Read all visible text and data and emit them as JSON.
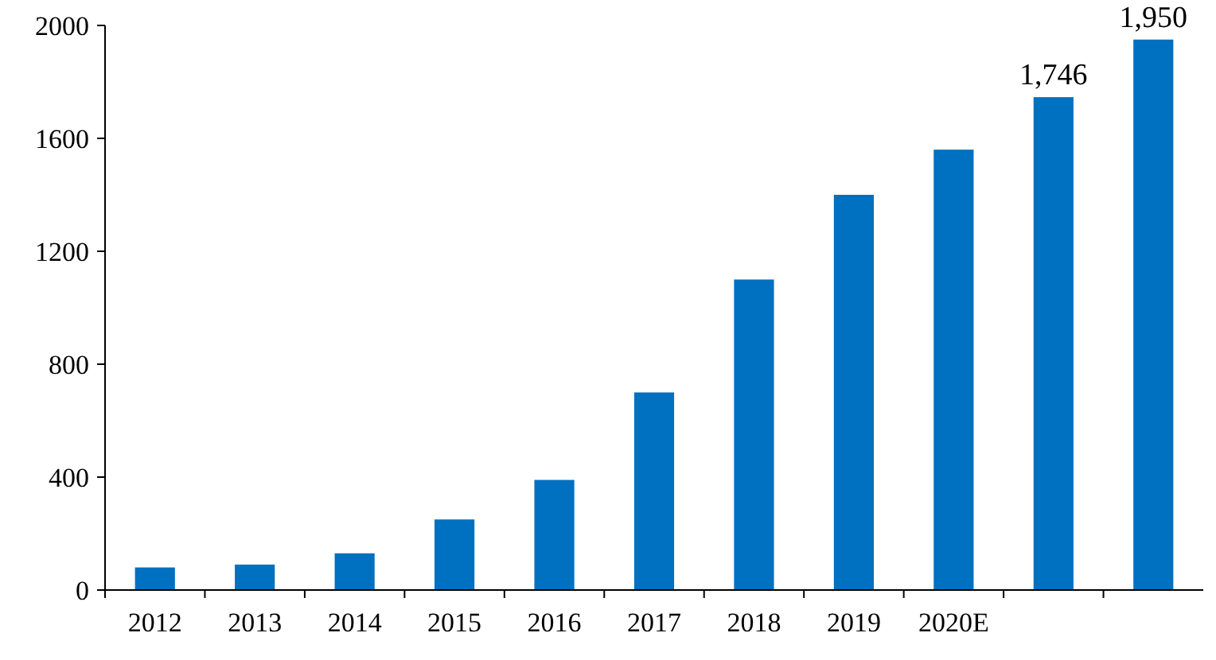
{
  "chart_data": {
    "type": "bar",
    "categories": [
      "2012",
      "2013",
      "2014",
      "2015",
      "2016",
      "2017",
      "2018",
      "2019",
      "2020E",
      null,
      null
    ],
    "values": [
      80,
      90,
      130,
      250,
      390,
      700,
      1100,
      1400,
      1560,
      1746,
      1950
    ],
    "value_labels": [
      null,
      null,
      null,
      null,
      null,
      null,
      null,
      null,
      null,
      "1,746",
      "1,950"
    ],
    "color": "#0070c0",
    "ylim": [
      0,
      2000
    ],
    "yticks": [
      0,
      400,
      800,
      1200,
      1600,
      2000
    ],
    "grid": false
  }
}
